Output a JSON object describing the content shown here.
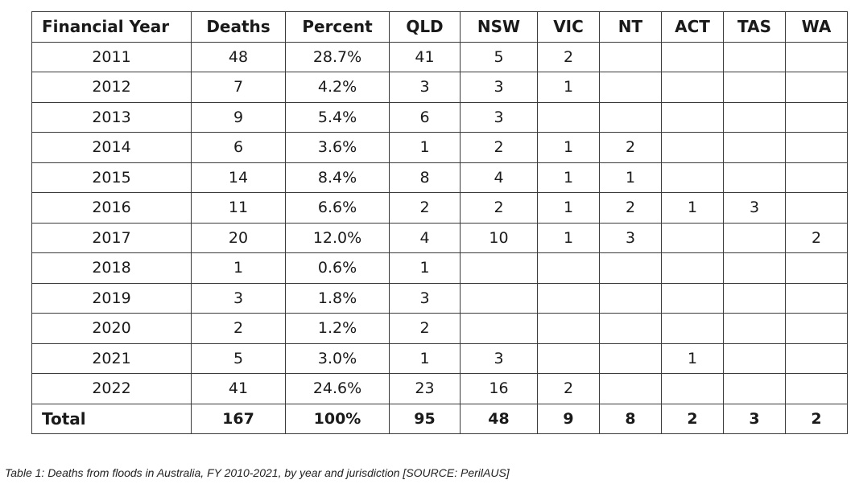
{
  "table": {
    "headers": [
      "Financial Year",
      "Deaths",
      "Percent",
      "QLD",
      "NSW",
      "VIC",
      "NT",
      "ACT",
      "TAS",
      "WA"
    ],
    "rows": [
      [
        "2011",
        "48",
        "28.7%",
        "41",
        "5",
        "2",
        "",
        "",
        "",
        ""
      ],
      [
        "2012",
        "7",
        "4.2%",
        "3",
        "3",
        "1",
        "",
        "",
        "",
        ""
      ],
      [
        "2013",
        "9",
        "5.4%",
        "6",
        "3",
        "",
        "",
        "",
        "",
        ""
      ],
      [
        "2014",
        "6",
        "3.6%",
        "1",
        "2",
        "1",
        "2",
        "",
        "",
        ""
      ],
      [
        "2015",
        "14",
        "8.4%",
        "8",
        "4",
        "1",
        "1",
        "",
        "",
        ""
      ],
      [
        "2016",
        "11",
        "6.6%",
        "2",
        "2",
        "1",
        "2",
        "1",
        "3",
        ""
      ],
      [
        "2017",
        "20",
        "12.0%",
        "4",
        "10",
        "1",
        "3",
        "",
        "",
        "2"
      ],
      [
        "2018",
        "1",
        "0.6%",
        "1",
        "",
        "",
        "",
        "",
        "",
        ""
      ],
      [
        "2019",
        "3",
        "1.8%",
        "3",
        "",
        "",
        "",
        "",
        "",
        ""
      ],
      [
        "2020",
        "2",
        "1.2%",
        "2",
        "",
        "",
        "",
        "",
        "",
        ""
      ],
      [
        "2021",
        "5",
        "3.0%",
        "1",
        "3",
        "",
        "",
        "1",
        "",
        ""
      ],
      [
        "2022",
        "41",
        "24.6%",
        "23",
        "16",
        "2",
        "",
        "",
        "",
        ""
      ]
    ],
    "total": [
      "Total",
      "167",
      "100%",
      "95",
      "48",
      "9",
      "8",
      "2",
      "3",
      "2"
    ]
  },
  "caption": "Table 1: Deaths from floods in Australia, FY 2010-2021, by year and jurisdiction [SOURCE: PerilAUS]"
}
